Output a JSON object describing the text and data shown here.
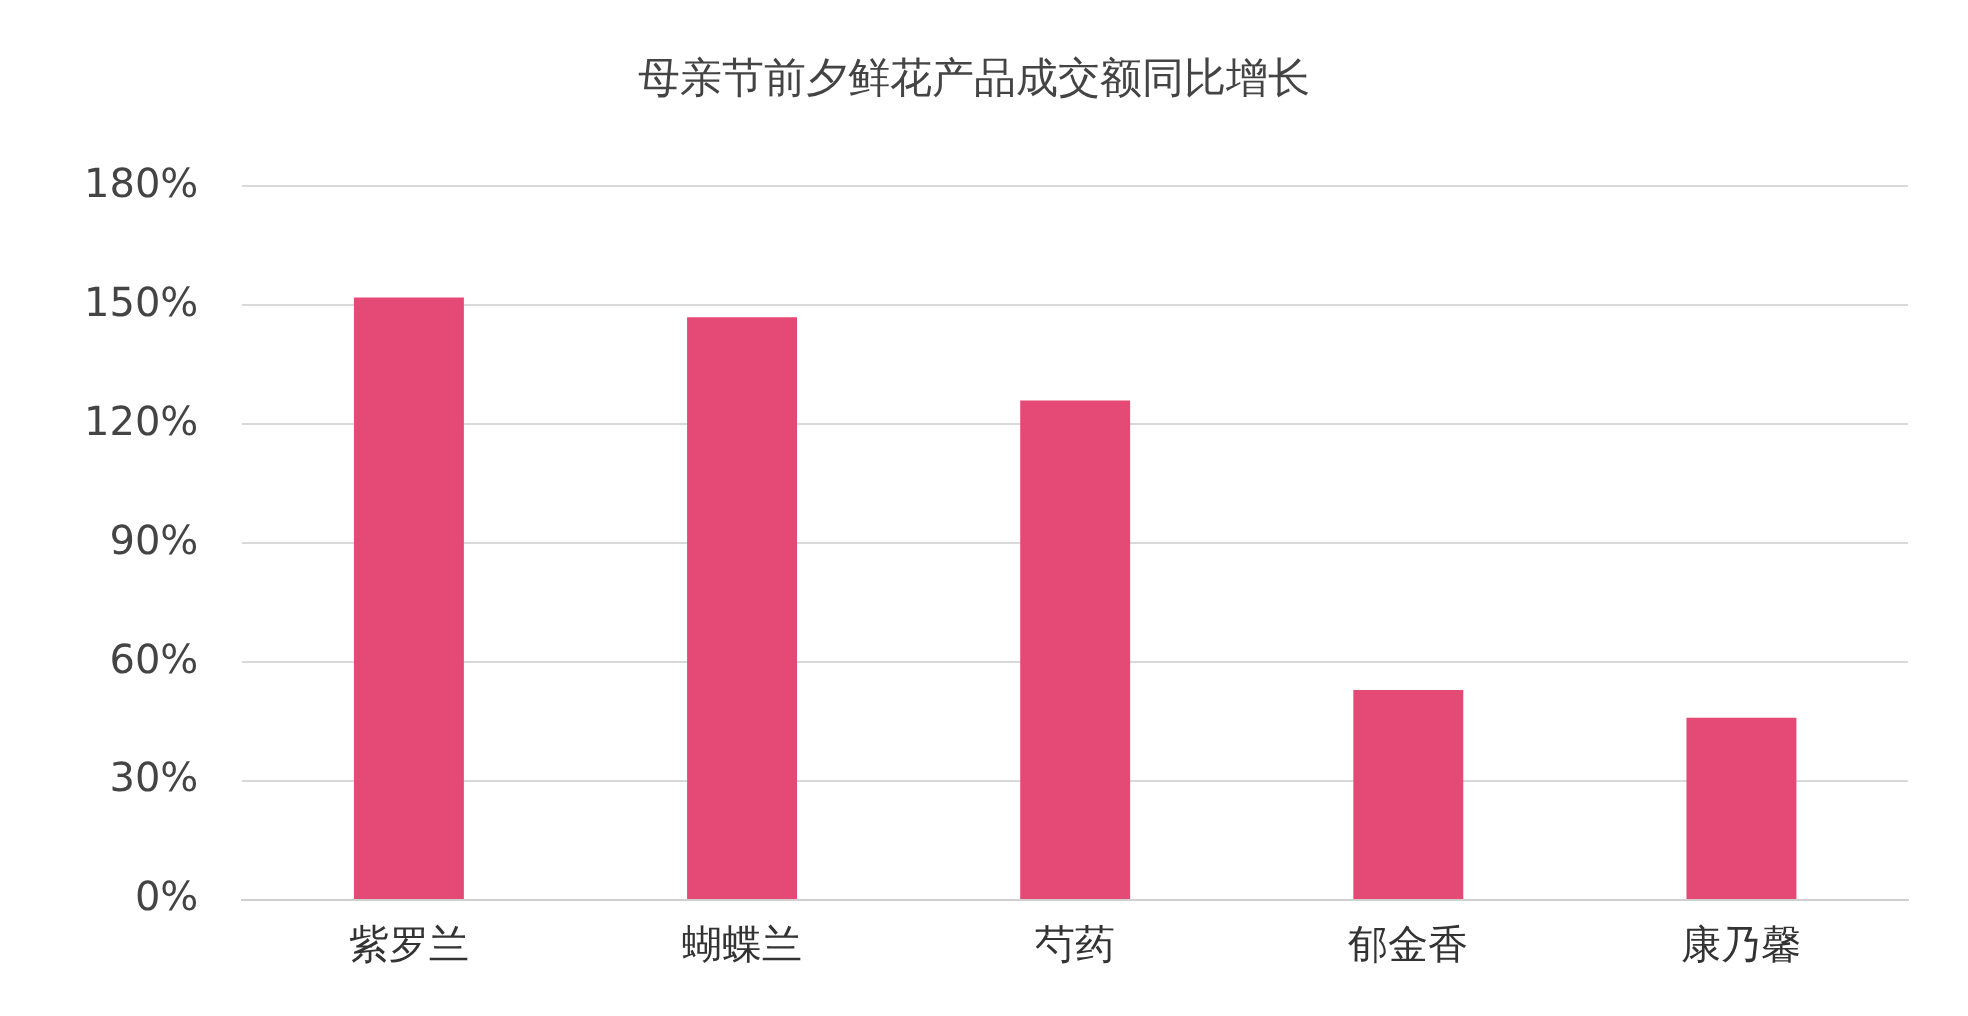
{
  "chart_data": {
    "type": "bar",
    "title": "母亲节前夕鲜花产品成交额同比增长",
    "categories": [
      "紫罗兰",
      "蝴蝶兰",
      "芍药",
      "郁金香",
      "康乃馨"
    ],
    "values": [
      152,
      147,
      126,
      53,
      46
    ],
    "color": "#e54a76",
    "ylim": [
      0,
      180
    ],
    "yticks": [
      {
        "value": 0,
        "label": "0%"
      },
      {
        "value": 30,
        "label": "30%"
      },
      {
        "value": 60,
        "label": "60%"
      },
      {
        "value": 90,
        "label": "90%"
      },
      {
        "value": 120,
        "label": "120%"
      },
      {
        "value": 150,
        "label": "150%"
      },
      {
        "value": 180,
        "label": "180%"
      }
    ],
    "grid": "y"
  }
}
